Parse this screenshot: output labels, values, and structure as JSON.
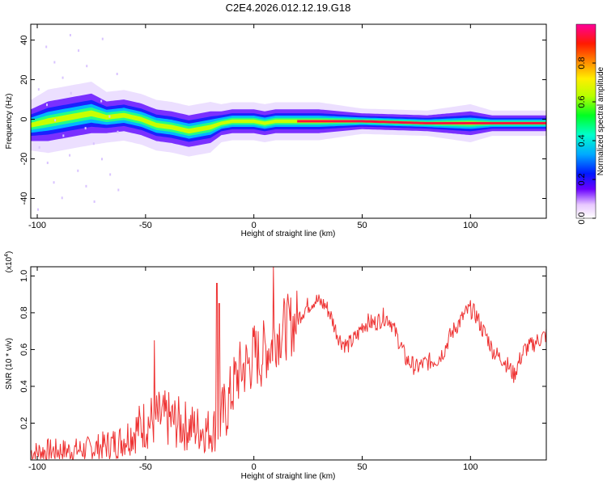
{
  "page_title": "C2E4.2026.012.12.19.G18",
  "chart_data": [
    {
      "type": "heatmap",
      "title": "C2E4.2026.012.12.19.G18",
      "xlabel": "Height of straight line (km)",
      "ylabel": "Frequency (Hz)",
      "xlim": [
        -103,
        135
      ],
      "ylim": [
        -50,
        48
      ],
      "xticks": [
        -100,
        -50,
        0,
        50,
        100
      ],
      "xtick_labels": [
        "-100",
        "-50",
        "0",
        "50",
        "100"
      ],
      "yticks": [
        -40,
        -20,
        0,
        20,
        40
      ],
      "ytick_labels": [
        "-40",
        "-20",
        "0",
        "20",
        "40"
      ],
      "colorbar": {
        "label": "Normalized spectral amplitude",
        "range": [
          0,
          1
        ],
        "ticks": [
          0.0,
          0.2,
          0.4,
          0.6,
          0.8
        ],
        "tick_labels": [
          "0.0",
          "0.2",
          "0.4",
          "0.6",
          "0.8"
        ]
      },
      "ridge": {
        "x": [
          -103,
          -95,
          -85,
          -75,
          -68,
          -60,
          -52,
          -45,
          -38,
          -30,
          -25,
          -20,
          -15,
          -10,
          -5,
          0,
          5,
          10,
          20,
          30,
          50,
          80,
          100,
          110,
          135
        ],
        "freq": [
          -3,
          -1,
          1,
          3,
          1,
          2,
          0,
          -3,
          -4,
          -6,
          -5,
          -4,
          -2,
          -1,
          -1,
          -1,
          -2,
          -1,
          -1,
          -1,
          -1,
          -2,
          -2,
          -2,
          -2
        ],
        "width": [
          4,
          5,
          5,
          5,
          4,
          4,
          4,
          4,
          4,
          4,
          4,
          4,
          3,
          3,
          3,
          3,
          3,
          3,
          3,
          3,
          2,
          2,
          3,
          2,
          2
        ]
      }
    },
    {
      "type": "line",
      "xlabel": "Height of straight line (km)",
      "ylabel": "SNR (10 * v/v)",
      "multiplier": "(x10",
      "multiplier_exp": "4",
      "multiplier_close": ")",
      "xlim": [
        -103,
        135
      ],
      "ylim": [
        0,
        1.05
      ],
      "xticks": [
        -100,
        -50,
        0,
        50,
        100
      ],
      "xtick_labels": [
        "-100",
        "-50",
        "0",
        "50",
        "100"
      ],
      "yticks": [
        0.2,
        0.4,
        0.6,
        0.8,
        1.0
      ],
      "ytick_labels": [
        "0.2",
        "0.4",
        "0.6",
        "0.8",
        "1.0"
      ],
      "color": "#ee3333",
      "series": [
        {
          "x": [
            -103,
            -95,
            -85,
            -75,
            -68,
            -62,
            -55,
            -50,
            -45,
            -40,
            -35,
            -30,
            -25,
            -20,
            -17,
            -15,
            -12,
            -10,
            -8,
            -5,
            -2,
            0,
            3,
            5,
            8,
            10,
            12,
            15,
            18,
            20,
            22,
            25,
            28,
            30,
            33,
            35,
            38,
            40,
            43,
            45,
            48,
            50,
            53,
            55,
            58,
            60,
            63,
            65,
            68,
            70,
            73,
            75,
            78,
            80,
            85,
            88,
            90,
            93,
            95,
            98,
            100,
            103,
            105,
            108,
            110,
            113,
            115,
            118,
            120,
            123,
            125,
            128,
            130,
            135
          ],
          "y": [
            0.04,
            0.05,
            0.05,
            0.06,
            0.08,
            0.1,
            0.16,
            0.2,
            0.22,
            0.22,
            0.2,
            0.18,
            0.17,
            0.16,
            0.18,
            0.22,
            0.3,
            0.38,
            0.45,
            0.5,
            0.52,
            0.58,
            0.55,
            0.6,
            0.62,
            0.68,
            0.7,
            0.72,
            0.74,
            0.76,
            0.8,
            0.84,
            0.87,
            0.86,
            0.84,
            0.8,
            0.7,
            0.65,
            0.62,
            0.64,
            0.68,
            0.73,
            0.75,
            0.74,
            0.76,
            0.78,
            0.76,
            0.7,
            0.62,
            0.55,
            0.52,
            0.5,
            0.52,
            0.53,
            0.55,
            0.6,
            0.66,
            0.72,
            0.75,
            0.8,
            0.82,
            0.78,
            0.72,
            0.66,
            0.6,
            0.56,
            0.55,
            0.5,
            0.46,
            0.55,
            0.6,
            0.62,
            0.64,
            0.68
          ]
        }
      ],
      "spikes": [
        {
          "x": -46,
          "y": 0.65
        },
        {
          "x": -17,
          "y": 0.96
        },
        {
          "x": -16,
          "y": 0.85
        },
        {
          "x": 9,
          "y": 1.05
        }
      ]
    }
  ]
}
